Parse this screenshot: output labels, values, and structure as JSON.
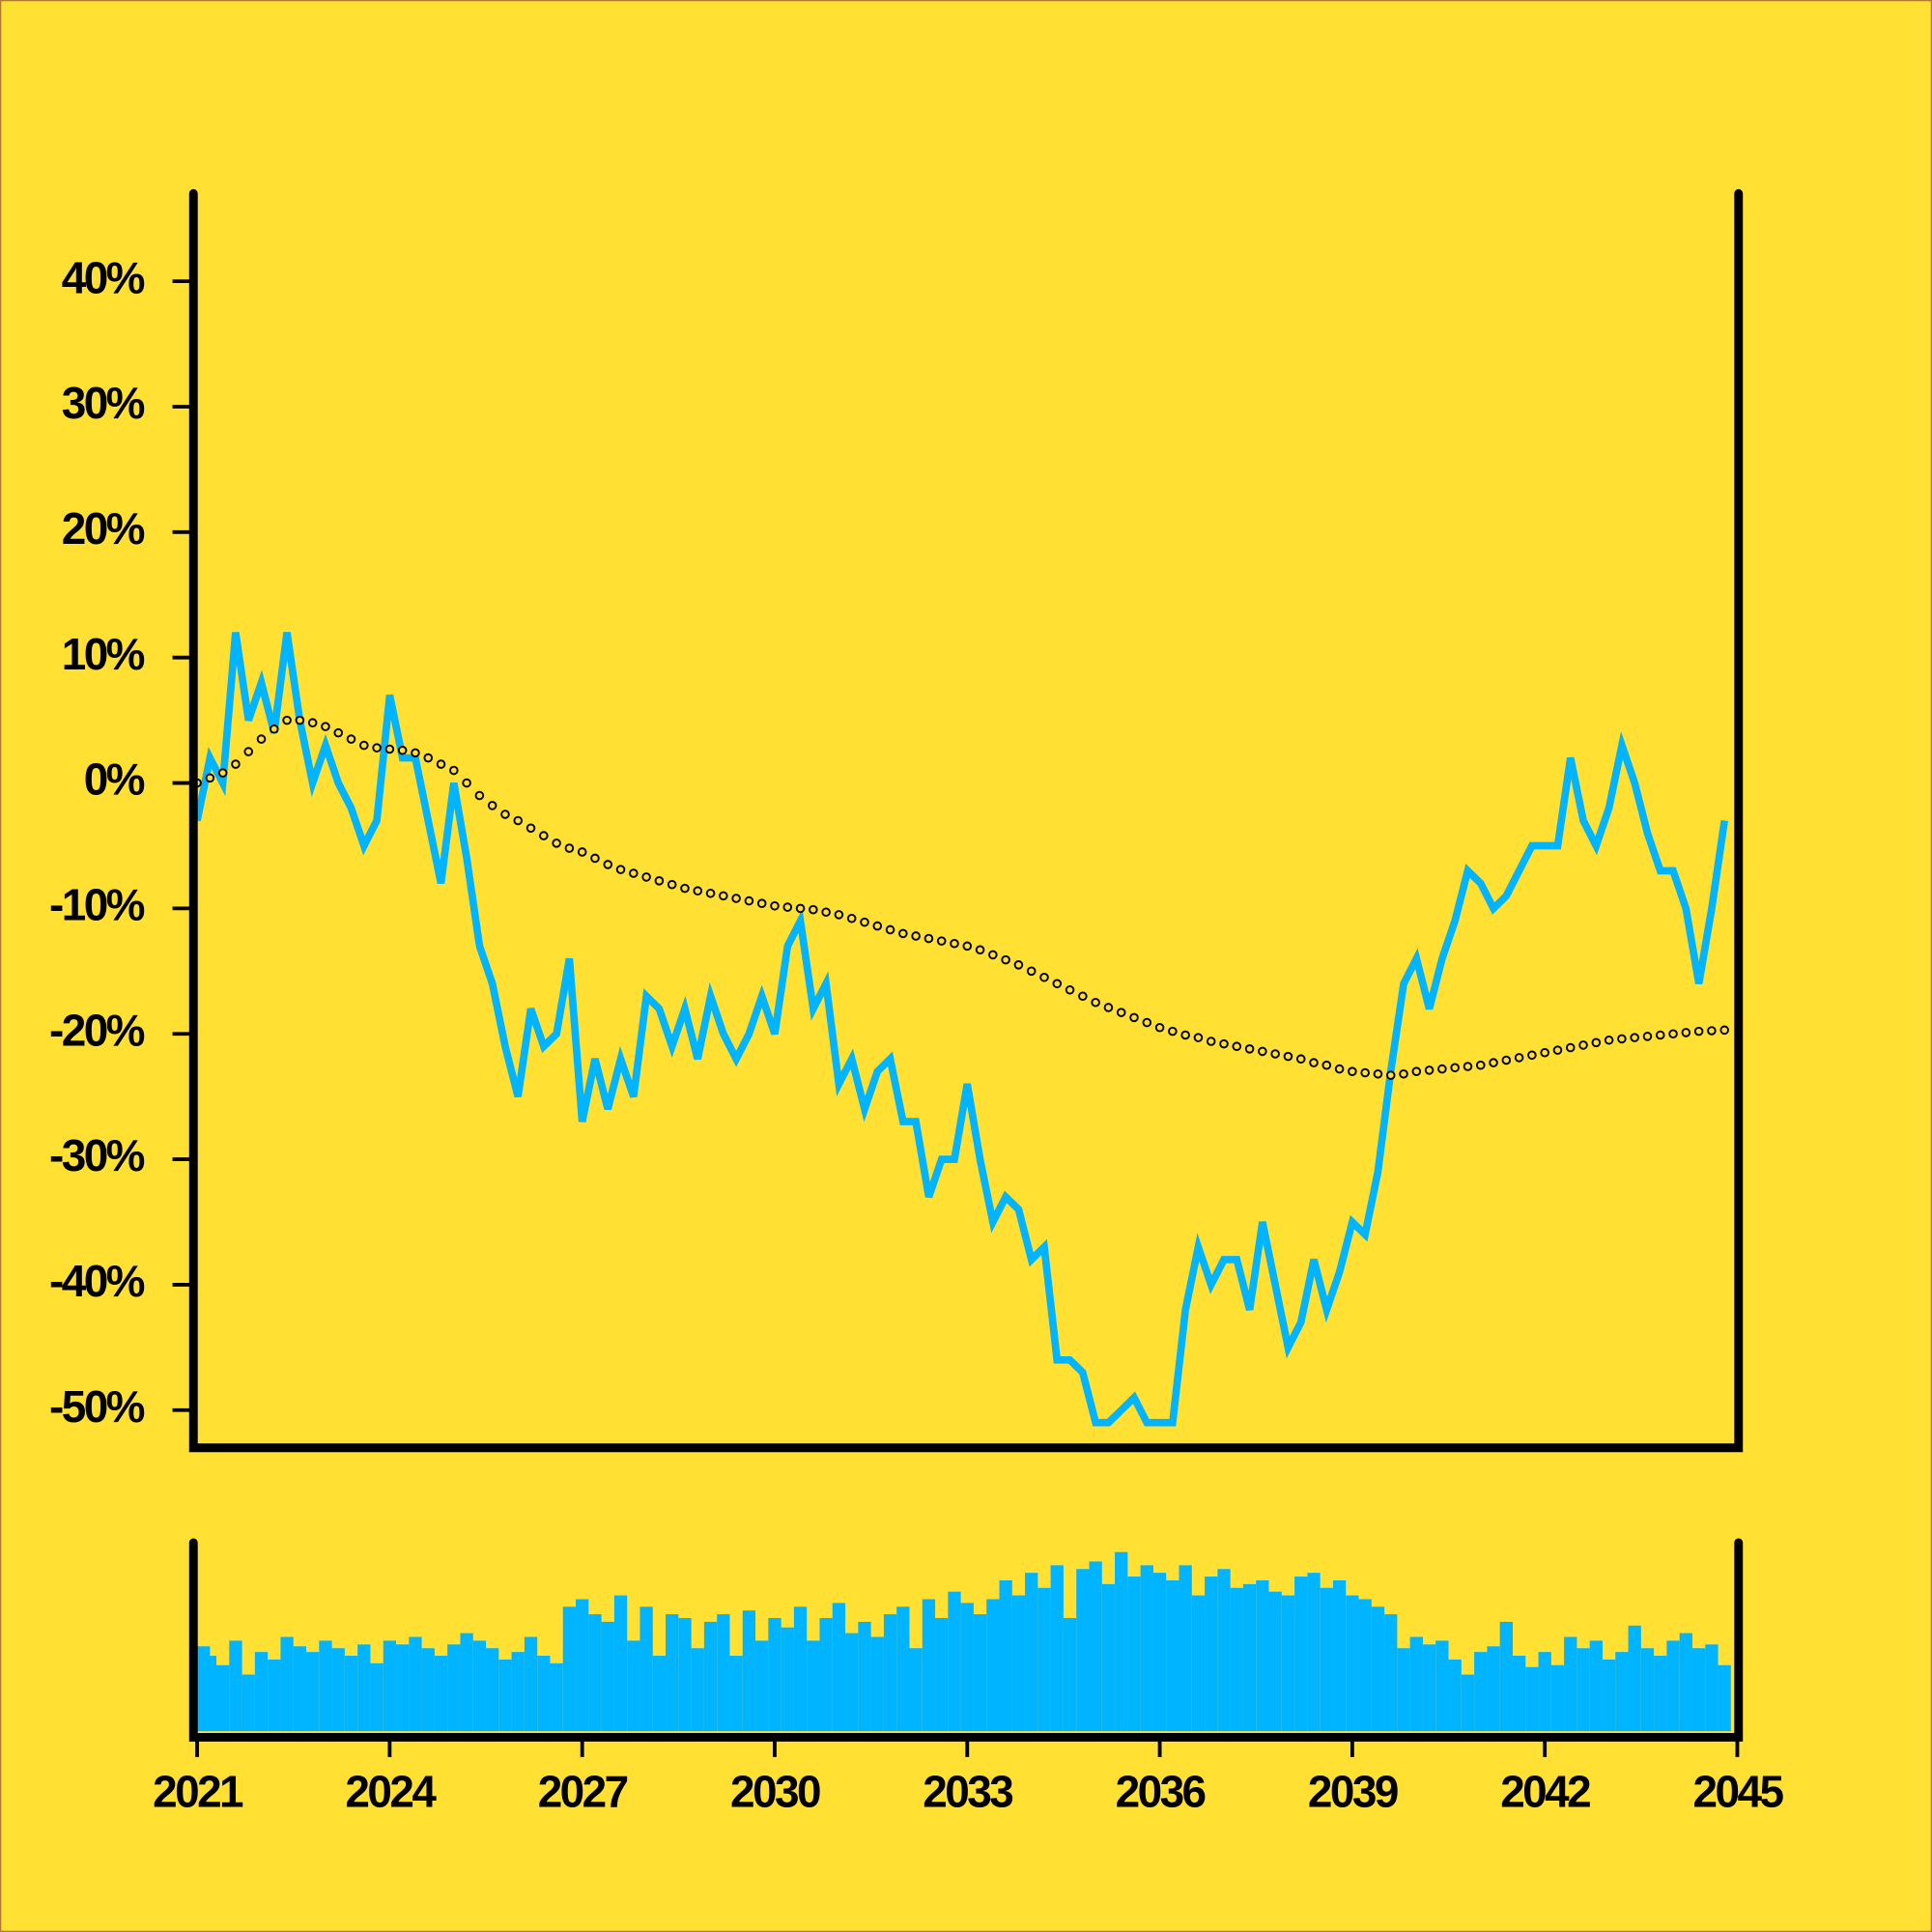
{
  "chart_data": {
    "type": "line",
    "x": [
      2021.0,
      2021.2,
      2021.4,
      2021.6,
      2021.8,
      2022.0,
      2022.2,
      2022.4,
      2022.6,
      2022.8,
      2023.0,
      2023.2,
      2023.4,
      2023.6,
      2023.8,
      2024.0,
      2024.2,
      2024.4,
      2024.6,
      2024.8,
      2025.0,
      2025.2,
      2025.4,
      2025.6,
      2025.8,
      2026.0,
      2026.2,
      2026.4,
      2026.6,
      2026.8,
      2027.0,
      2027.2,
      2027.4,
      2027.6,
      2027.8,
      2028.0,
      2028.2,
      2028.4,
      2028.6,
      2028.8,
      2029.0,
      2029.2,
      2029.4,
      2029.6,
      2029.8,
      2030.0,
      2030.2,
      2030.4,
      2030.6,
      2030.8,
      2031.0,
      2031.2,
      2031.4,
      2031.6,
      2031.8,
      2032.0,
      2032.2,
      2032.4,
      2032.6,
      2032.8,
      2033.0,
      2033.2,
      2033.4,
      2033.6,
      2033.8,
      2034.0,
      2034.2,
      2034.4,
      2034.6,
      2034.8,
      2035.0,
      2035.2,
      2035.4,
      2035.6,
      2035.8,
      2036.0,
      2036.2,
      2036.4,
      2036.6,
      2036.8,
      2037.0,
      2037.2,
      2037.4,
      2037.6,
      2037.8,
      2038.0,
      2038.2,
      2038.4,
      2038.6,
      2038.8,
      2039.0,
      2039.2,
      2039.4,
      2039.6,
      2039.8,
      2040.0,
      2040.2,
      2040.4,
      2040.6,
      2040.8,
      2041.0,
      2041.2,
      2041.4,
      2041.6,
      2041.8,
      2042.0,
      2042.2,
      2042.4,
      2042.6,
      2042.8,
      2043.0,
      2043.2,
      2043.4,
      2043.6,
      2043.8,
      2044.0,
      2044.2,
      2044.4,
      2044.6,
      2044.8
    ],
    "series": [
      {
        "color": "#00b4ff",
        "values": [
          -3,
          2,
          0,
          12,
          5,
          8,
          4,
          12,
          5,
          0,
          3,
          0,
          -2,
          -5,
          -3,
          7,
          2,
          2,
          -3,
          -8,
          0,
          -6,
          -13,
          -16,
          -21,
          -25,
          -18,
          -21,
          -20,
          -14,
          -27,
          -22,
          -26,
          -22,
          -25,
          -17,
          -18,
          -21,
          -18,
          -22,
          -17,
          -20,
          -22,
          -20,
          -17,
          -20,
          -13,
          -11,
          -18,
          -16,
          -24,
          -22,
          -26,
          -23,
          -22,
          -27,
          -27,
          -33,
          -30,
          -30,
          -24,
          -30,
          -35,
          -33,
          -34,
          -38,
          -37,
          -46,
          -46,
          -47,
          -51,
          -51,
          -50,
          -49,
          -51,
          -51,
          -51,
          -42,
          -37,
          -40,
          -38,
          -38,
          -42,
          -35,
          -40,
          -45,
          -43,
          -38,
          -42,
          -39,
          -35,
          -36,
          -31,
          -23,
          -16,
          -14,
          -18,
          -14,
          -11,
          -7,
          -8,
          -10,
          -9,
          -7,
          -5,
          -5,
          -5,
          2,
          -3,
          -5,
          -2,
          3,
          0,
          -4,
          -7,
          -7,
          -10,
          -16,
          -10,
          -3
        ]
      },
      {
        "color": "#000000",
        "style": "dots",
        "values": [
          0,
          0.4,
          0.8,
          1.5,
          2.5,
          3.5,
          4.3,
          5,
          5,
          4.8,
          4.5,
          4,
          3.5,
          3,
          2.8,
          2.7,
          2.6,
          2.4,
          2,
          1.5,
          1,
          0,
          -1,
          -1.8,
          -2.5,
          -3,
          -3.6,
          -4.2,
          -4.8,
          -5.2,
          -5.5,
          -6,
          -6.5,
          -6.9,
          -7.2,
          -7.5,
          -7.8,
          -8.1,
          -8.4,
          -8.6,
          -8.8,
          -9,
          -9.2,
          -9.4,
          -9.6,
          -9.8,
          -9.9,
          -10,
          -10.1,
          -10.3,
          -10.5,
          -10.8,
          -11.1,
          -11.4,
          -11.7,
          -12,
          -12.2,
          -12.4,
          -12.6,
          -12.8,
          -13,
          -13.3,
          -13.7,
          -14.1,
          -14.5,
          -15,
          -15.5,
          -16,
          -16.5,
          -17,
          -17.5,
          -17.9,
          -18.3,
          -18.7,
          -19.1,
          -19.5,
          -19.8,
          -20.1,
          -20.3,
          -20.6,
          -20.8,
          -21,
          -21.2,
          -21.4,
          -21.6,
          -21.8,
          -22,
          -22.3,
          -22.5,
          -22.8,
          -23,
          -23.1,
          -23.2,
          -23.3,
          -23.2,
          -23,
          -22.9,
          -22.8,
          -22.7,
          -22.6,
          -22.5,
          -22.3,
          -22.1,
          -21.9,
          -21.7,
          -21.5,
          -21.3,
          -21.1,
          -20.9,
          -20.7,
          -20.5,
          -20.4,
          -20.3,
          -20.2,
          -20.1,
          -20,
          -19.9,
          -19.8,
          -19.75,
          -19.7
        ]
      }
    ],
    "volume": {
      "color": "#00b4ff",
      "ylim": [
        0,
        100
      ],
      "values": [
        45,
        40,
        35,
        48,
        30,
        42,
        38,
        50,
        45,
        42,
        48,
        44,
        40,
        46,
        36,
        48,
        46,
        50,
        44,
        40,
        46,
        52,
        48,
        44,
        38,
        42,
        50,
        40,
        36,
        66,
        70,
        62,
        58,
        72,
        48,
        66,
        40,
        62,
        60,
        44,
        58,
        62,
        40,
        64,
        48,
        60,
        55,
        66,
        48,
        60,
        68,
        52,
        58,
        50,
        62,
        66,
        44,
        70,
        60,
        74,
        68,
        62,
        70,
        80,
        72,
        84,
        76,
        88,
        60,
        86,
        90,
        78,
        95,
        82,
        88,
        84,
        80,
        88,
        72,
        82,
        86,
        76,
        78,
        80,
        74,
        72,
        82,
        84,
        76,
        80,
        72,
        70,
        66,
        62,
        44,
        50,
        46,
        48,
        38,
        30,
        42,
        45,
        58,
        40,
        34,
        42,
        35,
        50,
        44,
        48,
        38,
        42,
        56,
        44,
        40,
        48,
        52,
        44,
        46,
        35
      ]
    },
    "xlim": [
      2021,
      2045
    ],
    "xticks": [
      2021,
      2024,
      2027,
      2030,
      2033,
      2036,
      2039,
      2042,
      2045
    ],
    "ylim": [
      -53,
      47
    ],
    "yticks": [
      {
        "value": 40,
        "label": "40%"
      },
      {
        "value": 30,
        "label": "30%"
      },
      {
        "value": 20,
        "label": "20%"
      },
      {
        "value": 10,
        "label": "10%"
      },
      {
        "value": 0,
        "label": "0%"
      },
      {
        "value": -10,
        "label": "-10%"
      },
      {
        "value": -20,
        "label": "-20%"
      },
      {
        "value": -30,
        "label": "-30%"
      },
      {
        "value": -40,
        "label": "-40%"
      },
      {
        "value": -50,
        "label": "-50%"
      }
    ]
  }
}
